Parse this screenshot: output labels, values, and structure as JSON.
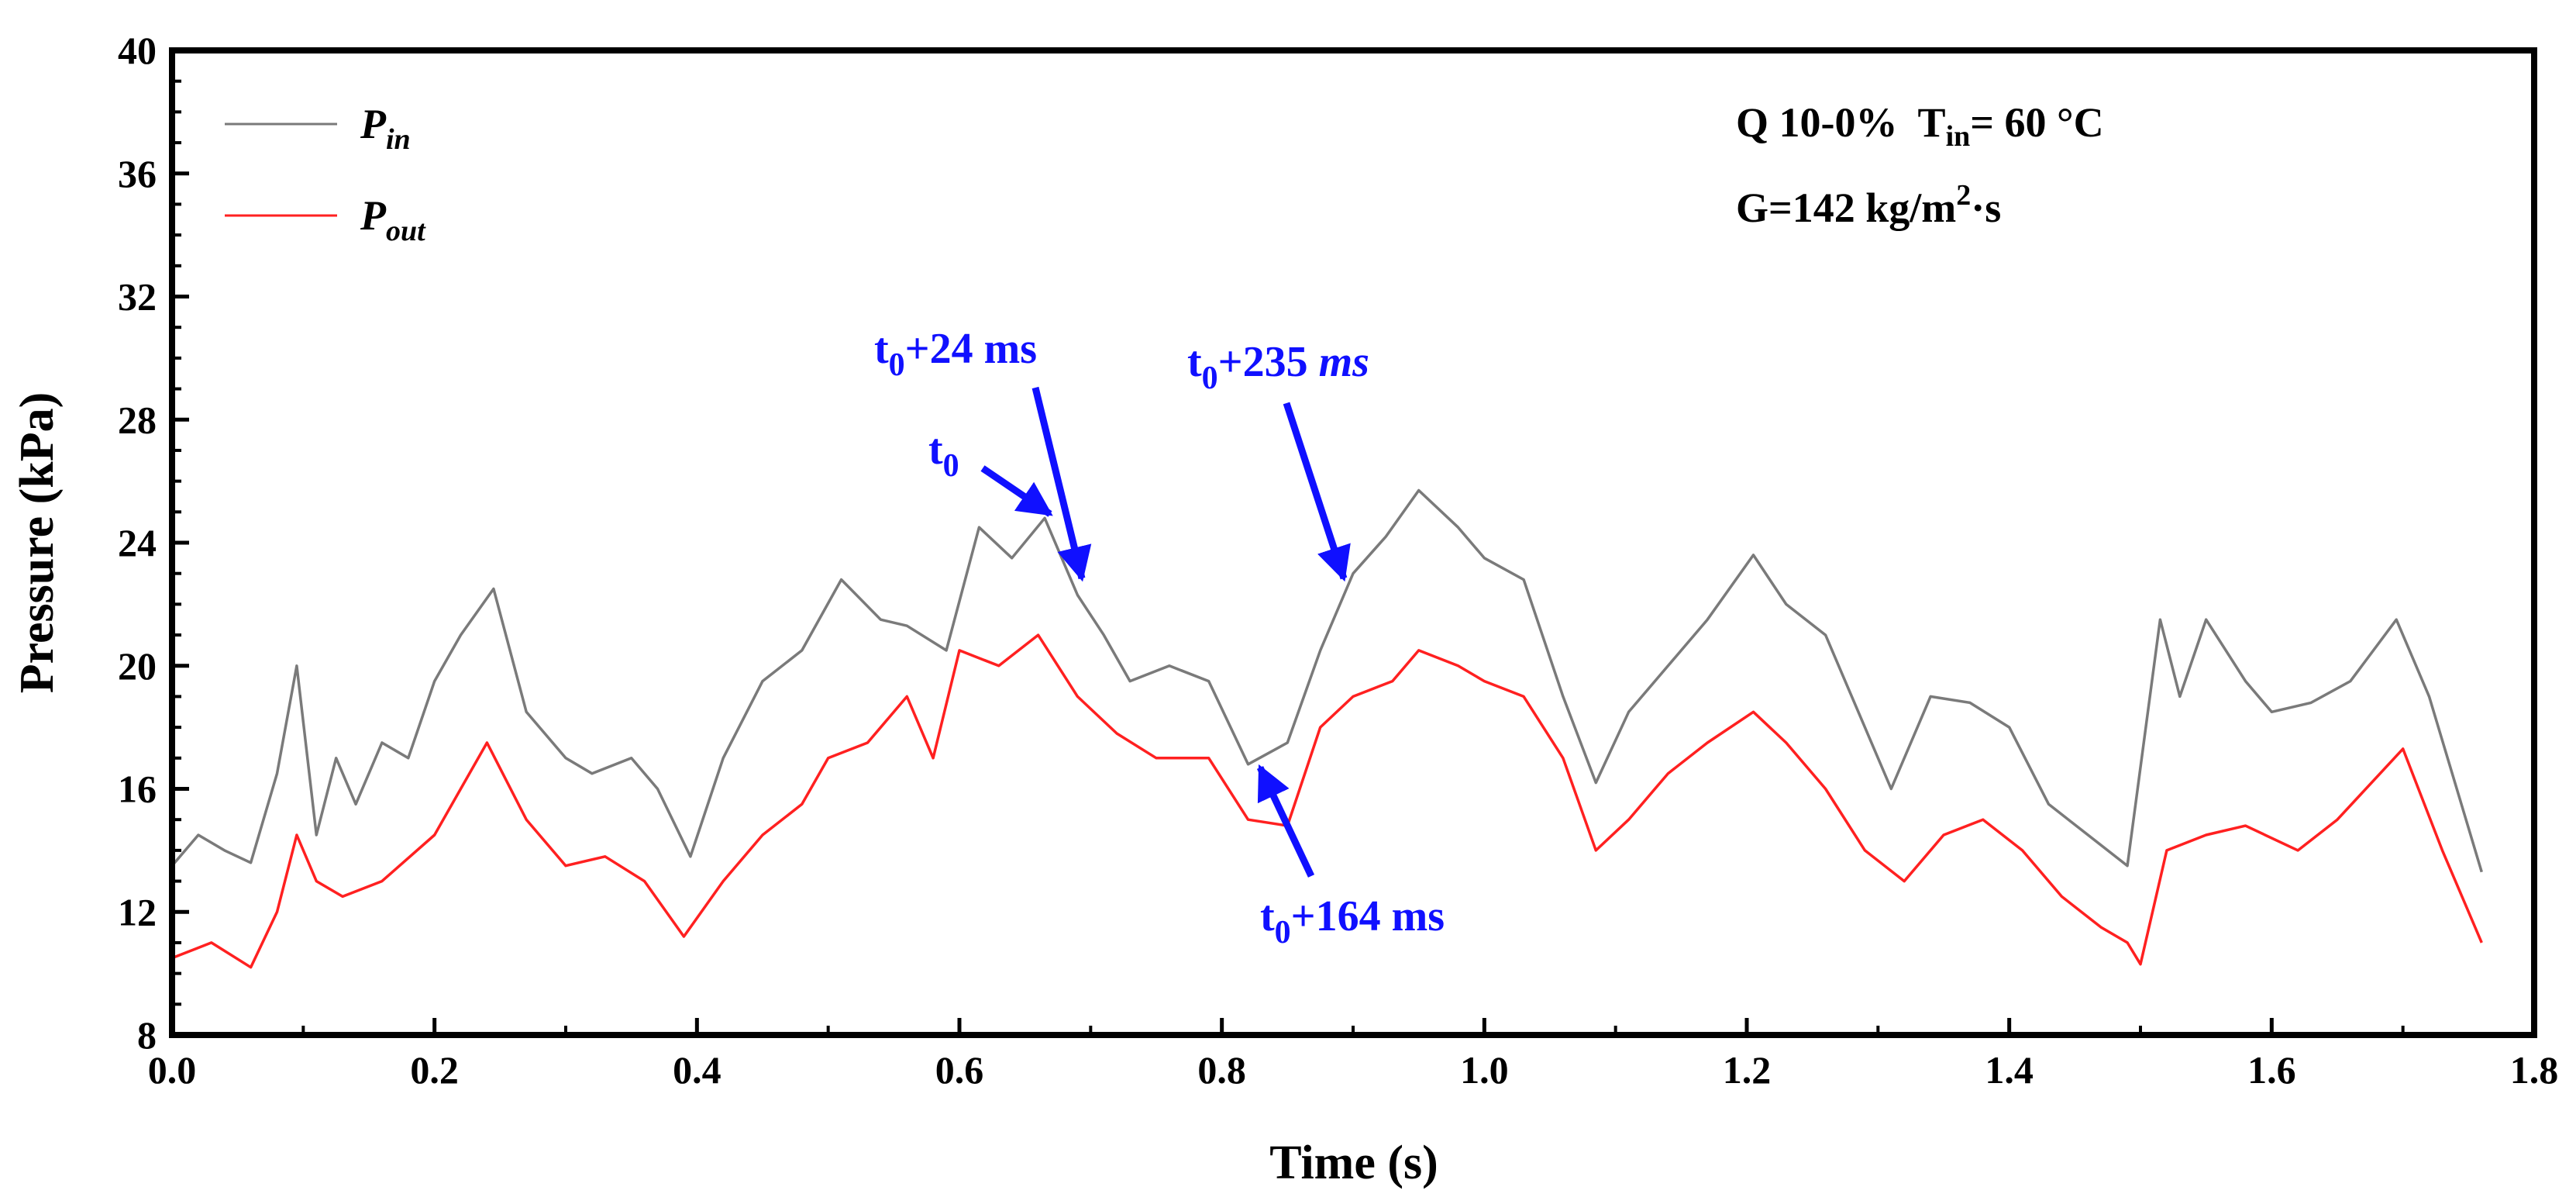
{
  "chart_data": {
    "type": "line",
    "xlabel": "Time (s)",
    "ylabel": "Pressure (kPa)",
    "xlim": [
      0.0,
      1.8
    ],
    "ylim": [
      8,
      40
    ],
    "x_ticks": [
      "0.0",
      "0.2",
      "0.4",
      "0.6",
      "0.8",
      "1.0",
      "1.2",
      "1.4",
      "1.6",
      "1.8"
    ],
    "y_ticks": [
      "8",
      "12",
      "16",
      "20",
      "24",
      "28",
      "32",
      "36",
      "40"
    ],
    "grid": false,
    "legend_position": "top-left",
    "conditions": {
      "line1": {
        "q": "Q 10-0%",
        "t_main": "T",
        "t_sub": "in",
        "t_rest": "= 60 °C"
      },
      "line2": {
        "g_main": "G=142 kg/m",
        "g_sup": "2",
        "g_rest": "·s"
      }
    },
    "series": [
      {
        "legend_main": "P",
        "legend_sub": "in",
        "color": "#7a7a7a",
        "x": [
          0.0,
          0.02,
          0.04,
          0.06,
          0.08,
          0.095,
          0.11,
          0.125,
          0.14,
          0.16,
          0.18,
          0.2,
          0.22,
          0.245,
          0.27,
          0.3,
          0.32,
          0.35,
          0.37,
          0.395,
          0.42,
          0.45,
          0.48,
          0.51,
          0.54,
          0.56,
          0.59,
          0.615,
          0.64,
          0.665,
          0.69,
          0.71,
          0.73,
          0.76,
          0.79,
          0.82,
          0.85,
          0.875,
          0.9,
          0.925,
          0.95,
          0.98,
          1.0,
          1.03,
          1.06,
          1.085,
          1.11,
          1.14,
          1.17,
          1.205,
          1.23,
          1.26,
          1.29,
          1.31,
          1.34,
          1.37,
          1.4,
          1.43,
          1.46,
          1.49,
          1.515,
          1.53,
          1.55,
          1.58,
          1.6,
          1.63,
          1.66,
          1.695,
          1.72,
          1.76
        ],
        "y": [
          13.5,
          14.5,
          14.0,
          13.6,
          16.5,
          20.0,
          14.5,
          17.0,
          15.5,
          17.5,
          17.0,
          19.5,
          21.0,
          22.5,
          18.5,
          17.0,
          16.5,
          17.0,
          16.0,
          13.8,
          17.0,
          19.5,
          20.5,
          22.8,
          21.5,
          21.3,
          20.5,
          24.5,
          23.5,
          24.8,
          22.3,
          21.0,
          19.5,
          20.0,
          19.5,
          16.8,
          17.5,
          20.5,
          23.0,
          24.2,
          25.7,
          24.5,
          23.5,
          22.8,
          19.0,
          16.2,
          18.5,
          20.0,
          21.5,
          23.6,
          22.0,
          21.0,
          18.0,
          16.0,
          19.0,
          18.8,
          18.0,
          15.5,
          14.5,
          13.5,
          21.5,
          19.0,
          21.5,
          19.5,
          18.5,
          18.8,
          19.5,
          21.5,
          19.0,
          13.3
        ]
      },
      {
        "legend_main": "P",
        "legend_sub": "out",
        "color": "#ff2020",
        "x": [
          0.0,
          0.03,
          0.06,
          0.08,
          0.095,
          0.11,
          0.13,
          0.16,
          0.2,
          0.22,
          0.24,
          0.27,
          0.3,
          0.33,
          0.36,
          0.39,
          0.42,
          0.45,
          0.48,
          0.5,
          0.53,
          0.56,
          0.58,
          0.6,
          0.63,
          0.66,
          0.69,
          0.72,
          0.75,
          0.79,
          0.82,
          0.85,
          0.875,
          0.9,
          0.93,
          0.95,
          0.98,
          1.0,
          1.03,
          1.06,
          1.085,
          1.11,
          1.14,
          1.17,
          1.205,
          1.23,
          1.26,
          1.29,
          1.32,
          1.35,
          1.38,
          1.41,
          1.44,
          1.47,
          1.49,
          1.5,
          1.52,
          1.55,
          1.58,
          1.62,
          1.65,
          1.7,
          1.73,
          1.76
        ],
        "y": [
          10.5,
          11.0,
          10.2,
          12.0,
          14.5,
          13.0,
          12.5,
          13.0,
          14.5,
          16.0,
          17.5,
          15.0,
          13.5,
          13.8,
          13.0,
          11.2,
          13.0,
          14.5,
          15.5,
          17.0,
          17.5,
          19.0,
          17.0,
          20.5,
          20.0,
          21.0,
          19.0,
          17.8,
          17.0,
          17.0,
          15.0,
          14.8,
          18.0,
          19.0,
          19.5,
          20.5,
          20.0,
          19.5,
          19.0,
          17.0,
          14.0,
          15.0,
          16.5,
          17.5,
          18.5,
          17.5,
          16.0,
          14.0,
          13.0,
          14.5,
          15.0,
          14.0,
          12.5,
          11.5,
          11.0,
          10.3,
          14.0,
          14.5,
          14.8,
          14.0,
          15.0,
          17.3,
          14.0,
          11.0
        ]
      }
    ],
    "annotations": [
      {
        "main": "t",
        "sub": "0",
        "rest": "",
        "rest_italic": "",
        "arrow_to": [
          0.67,
          24.8
        ]
      },
      {
        "main": "t",
        "sub": "0",
        "rest": "+24 ms",
        "rest_italic": "",
        "arrow_to": [
          0.694,
          22.6
        ]
      },
      {
        "main": "t",
        "sub": "0",
        "rest": "+164 ms",
        "rest_italic": "",
        "arrow_to": [
          0.832,
          16.8
        ]
      },
      {
        "main": "t",
        "sub": "0",
        "rest": "+235 ",
        "rest_italic": "ms",
        "arrow_to": [
          0.892,
          22.5
        ]
      }
    ]
  }
}
